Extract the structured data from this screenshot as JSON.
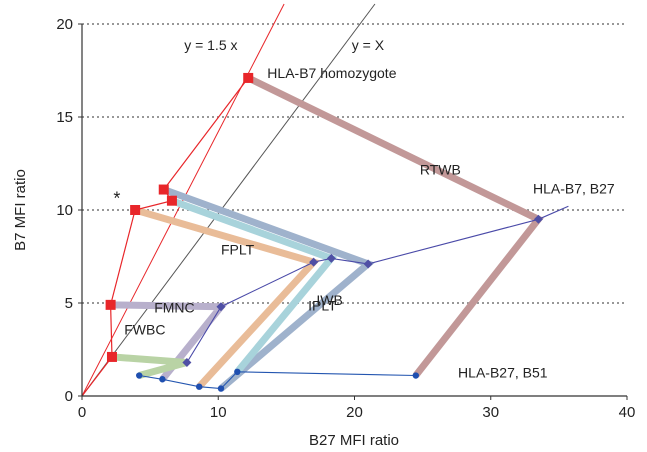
{
  "chart_data": {
    "type": "line",
    "title": "",
    "xlabel": "B27 MFI ratio",
    "ylabel": "B7 MFI ratio",
    "xlim": [
      0,
      40
    ],
    "ylim": [
      0,
      20
    ],
    "x_ticks": [
      0,
      10,
      20,
      30,
      40
    ],
    "y_ticks": [
      0,
      5,
      10,
      15,
      20
    ],
    "grid": "horizontal dotted",
    "reference_lines": [
      {
        "label": "y = 1.5 x",
        "slope": 1.5,
        "color": "#e8262a"
      },
      {
        "label": "y = X",
        "slope": 1,
        "color": "#555555"
      }
    ],
    "thick_series": [
      {
        "name": "RTWB",
        "color": "#c29898",
        "points": [
          [
            12.2,
            17.1
          ],
          [
            33.5,
            9.5
          ],
          [
            24.5,
            1.1
          ]
        ]
      },
      {
        "name": "",
        "color": "#9fb2cc",
        "points": [
          [
            6.0,
            11.1
          ],
          [
            21.0,
            7.1
          ],
          [
            10.2,
            0.4
          ]
        ]
      },
      {
        "name": "",
        "color": "#a8d3db",
        "points": [
          [
            6.6,
            10.5
          ],
          [
            18.3,
            7.4
          ],
          [
            11.4,
            1.3
          ]
        ]
      },
      {
        "name": "FPLT",
        "color": "#e9bc98",
        "points": [
          [
            3.9,
            10.0
          ],
          [
            17.0,
            7.2
          ],
          [
            8.6,
            0.5
          ]
        ]
      },
      {
        "name": "FMNC",
        "color": "#b8b0cc",
        "points": [
          [
            2.1,
            4.9
          ],
          [
            10.2,
            4.8
          ],
          [
            5.9,
            0.9
          ]
        ]
      },
      {
        "name": "FWBC",
        "color": "#b9d3a5",
        "points": [
          [
            2.2,
            2.1
          ],
          [
            7.7,
            1.8
          ],
          [
            4.2,
            1.1
          ]
        ]
      }
    ],
    "annotations": [
      {
        "text": "HLA-B7 homozygote",
        "x": 13.6,
        "y": 17.1
      },
      {
        "text": "RTWB",
        "x": 24.8,
        "y": 11.9
      },
      {
        "text": "HLA-B7, B27",
        "x": 33.1,
        "y": 10.9
      },
      {
        "text": "FPLT",
        "x": 10.2,
        "y": 7.6
      },
      {
        "text": "IPLT",
        "x": 16.6,
        "y": 4.6
      },
      {
        "text": "IWB",
        "x": 17.2,
        "y": 4.9
      },
      {
        "text": "FMNC",
        "x": 5.3,
        "y": 4.5
      },
      {
        "text": "FWBC",
        "x": 3.1,
        "y": 3.3
      },
      {
        "text": "HLA-B27, B51",
        "x": 27.6,
        "y": 1.0
      },
      {
        "text": "*",
        "x": 2.3,
        "y": 10.3
      },
      {
        "text": "y = 1.5 x",
        "x": 7.5,
        "y": 18.6
      },
      {
        "text": "y = X",
        "x": 19.8,
        "y": 18.6
      }
    ],
    "b7_homozygote_line": {
      "color": "#e8262a",
      "points": [
        [
          12.2,
          17.1
        ],
        [
          6.0,
          11.1
        ],
        [
          6.6,
          10.5
        ],
        [
          3.9,
          10.0
        ],
        [
          2.1,
          4.9
        ],
        [
          2.2,
          2.1
        ],
        [
          0,
          0
        ]
      ]
    },
    "homozygote_marker": {
      "x": 12.2,
      "y": 17.1
    },
    "heterozygote_b7_b27": {
      "color": "#4a4aa8",
      "points": [
        [
          35.7,
          10.2
        ],
        [
          33.5,
          9.5
        ],
        [
          21.0,
          7.1
        ],
        [
          18.3,
          7.4
        ],
        [
          17.0,
          7.2
        ],
        [
          10.2,
          4.8
        ],
        [
          7.7,
          1.8
        ]
      ]
    },
    "heterozygote_b27_b51": {
      "color": "#2456b0",
      "points": [
        [
          24.5,
          1.1
        ],
        [
          11.4,
          1.3
        ],
        [
          10.2,
          0.4
        ],
        [
          8.6,
          0.5
        ],
        [
          5.9,
          0.9
        ],
        [
          4.2,
          1.1
        ]
      ]
    }
  }
}
